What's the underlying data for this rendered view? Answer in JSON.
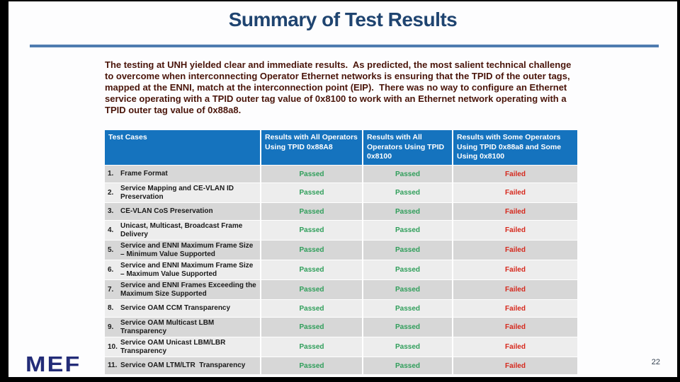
{
  "slide": {
    "title": "Summary of Test Results",
    "body_paragraph": "The testing at UNH yielded clear and immediate results.  As predicted, the most salient technical challenge to overcome when interconnecting Operator Ethernet networks is ensuring that the TPID of the outer tags, mapped at the ENNI, match at the interconnection point (EIP).  There was no way to configure an Ethernet service operating with a TPID outer tag value of 0x8100 to work with an Ethernet network operating with a TPID outer tag value of 0x88a8.",
    "logo_text": "MEF",
    "page_number": "22"
  },
  "colors": {
    "title": "#1F4470",
    "divider": "#4F7CB0",
    "body_text": "#4A150A",
    "header_bg": "#1573BE",
    "row_odd": "#D7D7D7",
    "row_even": "#EDEDED",
    "label_text": "#1A1A1A",
    "passed": "#2F9E5A",
    "failed": "#D6281C",
    "logo": "#232C78"
  },
  "table": {
    "headers": [
      "Test Cases",
      "Results with All Operators Using TPID 0x88A8",
      "Results with All Operators Using TPID 0x8100",
      "Results with Some Operators Using TPID 0x88a8 and Some Using 0x8100"
    ],
    "rows": [
      {
        "num": "1.",
        "label": "Frame Format",
        "results": [
          "Passed",
          "Passed",
          "Failed"
        ]
      },
      {
        "num": "2.",
        "label": "Service Mapping and CE-VLAN ID Preservation",
        "results": [
          "Passed",
          "Passed",
          "Failed"
        ]
      },
      {
        "num": "3.",
        "label": "CE-VLAN CoS Preservation",
        "results": [
          "Passed",
          "Passed",
          "Failed"
        ]
      },
      {
        "num": "4.",
        "label": "Unicast, Multicast, Broadcast Frame Delivery",
        "results": [
          "Passed",
          "Passed",
          "Failed"
        ]
      },
      {
        "num": "5.",
        "label": "Service and ENNI Maximum Frame Size – Minimum Value Supported",
        "results": [
          "Passed",
          "Passed",
          "Failed"
        ]
      },
      {
        "num": "6.",
        "label": "Service and ENNI Maximum Frame Size – Maximum Value Supported",
        "results": [
          "Passed",
          "Passed",
          "Failed"
        ]
      },
      {
        "num": "7.",
        "label": "Service and ENNI Frames Exceeding the Maximum Size Supported",
        "results": [
          "Passed",
          "Passed",
          "Failed"
        ]
      },
      {
        "num": "8.",
        "label": "Service OAM CCM Transparency",
        "results": [
          "Passed",
          "Passed",
          "Failed"
        ]
      },
      {
        "num": "9.",
        "label": "Service OAM Multicast LBM Transparency",
        "results": [
          "Passed",
          "Passed",
          "Failed"
        ]
      },
      {
        "num": "10.",
        "label": "Service OAM Unicast LBM/LBR Transparency",
        "results": [
          "Passed",
          "Passed",
          "Failed"
        ]
      },
      {
        "num": "11.",
        "label": "Service OAM LTM/LTR  Transparency",
        "results": [
          "Passed",
          "Passed",
          "Failed"
        ]
      }
    ]
  }
}
